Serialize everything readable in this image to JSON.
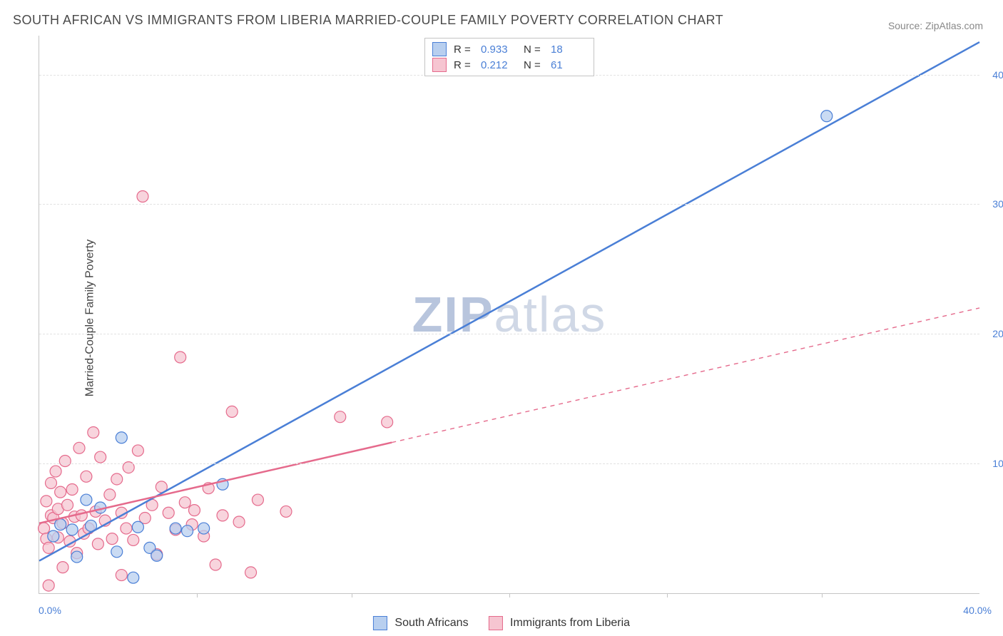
{
  "title": "SOUTH AFRICAN VS IMMIGRANTS FROM LIBERIA MARRIED-COUPLE FAMILY POVERTY CORRELATION CHART",
  "source": "Source: ZipAtlas.com",
  "y_axis_title": "Married-Couple Family Poverty",
  "watermark_a": "ZIP",
  "watermark_b": "atlas",
  "chart": {
    "type": "scatter",
    "xlim": [
      0,
      40
    ],
    "ylim": [
      0,
      43
    ],
    "x_ticks": [
      0,
      40
    ],
    "x_tick_labels": [
      "0.0%",
      "40.0%"
    ],
    "x_minor_ticks": [
      6.7,
      13.3,
      20,
      26.7,
      33.3
    ],
    "y_ticks": [
      10,
      20,
      30,
      40
    ],
    "y_tick_labels": [
      "10.0%",
      "20.0%",
      "30.0%",
      "40.0%"
    ],
    "grid_color": "#e2e2e2",
    "axis_color": "#c4c4c4",
    "background_color": "#ffffff",
    "marker_radius": 8,
    "marker_stroke_width": 1.2,
    "line_width": 2.5,
    "series": [
      {
        "name": "South Africans",
        "color_fill": "#b8cfef",
        "color_stroke": "#4a7fd6",
        "r": 0.933,
        "n": 18,
        "regression": {
          "x1": 0,
          "y1": 2.5,
          "x2": 40,
          "y2": 42.5,
          "solid_until_x": 40
        },
        "points": [
          [
            0.6,
            4.4
          ],
          [
            0.9,
            5.3
          ],
          [
            1.4,
            4.9
          ],
          [
            1.6,
            2.8
          ],
          [
            2.0,
            7.2
          ],
          [
            2.2,
            5.2
          ],
          [
            2.6,
            6.6
          ],
          [
            3.3,
            3.2
          ],
          [
            3.5,
            12.0
          ],
          [
            4.0,
            1.2
          ],
          [
            4.2,
            5.1
          ],
          [
            4.7,
            3.5
          ],
          [
            5.0,
            2.9
          ],
          [
            5.8,
            5.0
          ],
          [
            6.3,
            4.8
          ],
          [
            7.0,
            5.0
          ],
          [
            7.8,
            8.4
          ],
          [
            33.5,
            36.8
          ]
        ]
      },
      {
        "name": "Immigrants from Liberia",
        "color_fill": "#f6c5d1",
        "color_stroke": "#e56a8c",
        "r": 0.212,
        "n": 61,
        "regression": {
          "x1": 0,
          "y1": 5.4,
          "x2": 40,
          "y2": 22.0,
          "solid_until_x": 15
        },
        "points": [
          [
            0.2,
            5.0
          ],
          [
            0.3,
            4.2
          ],
          [
            0.3,
            7.1
          ],
          [
            0.4,
            3.5
          ],
          [
            0.5,
            8.5
          ],
          [
            0.5,
            6.0
          ],
          [
            0.6,
            5.8
          ],
          [
            0.7,
            9.4
          ],
          [
            0.8,
            4.3
          ],
          [
            0.8,
            6.5
          ],
          [
            0.9,
            7.8
          ],
          [
            1.0,
            5.4
          ],
          [
            1.0,
            2.0
          ],
          [
            1.1,
            10.2
          ],
          [
            1.2,
            6.8
          ],
          [
            1.3,
            4.0
          ],
          [
            1.4,
            8.0
          ],
          [
            1.5,
            5.9
          ],
          [
            1.6,
            3.1
          ],
          [
            1.7,
            11.2
          ],
          [
            1.8,
            6.0
          ],
          [
            1.9,
            4.6
          ],
          [
            2.0,
            9.0
          ],
          [
            2.1,
            5.0
          ],
          [
            2.3,
            12.4
          ],
          [
            2.4,
            6.3
          ],
          [
            2.5,
            3.8
          ],
          [
            2.6,
            10.5
          ],
          [
            2.8,
            5.6
          ],
          [
            3.0,
            7.6
          ],
          [
            3.1,
            4.2
          ],
          [
            3.3,
            8.8
          ],
          [
            3.5,
            1.4
          ],
          [
            3.5,
            6.2
          ],
          [
            3.7,
            5.0
          ],
          [
            3.8,
            9.7
          ],
          [
            4.0,
            4.1
          ],
          [
            4.2,
            11.0
          ],
          [
            4.4,
            30.6
          ],
          [
            4.5,
            5.8
          ],
          [
            4.8,
            6.8
          ],
          [
            5.0,
            3.0
          ],
          [
            5.2,
            8.2
          ],
          [
            5.5,
            6.2
          ],
          [
            5.8,
            4.9
          ],
          [
            6.0,
            18.2
          ],
          [
            6.2,
            7.0
          ],
          [
            6.5,
            5.3
          ],
          [
            6.6,
            6.4
          ],
          [
            7.0,
            4.4
          ],
          [
            7.2,
            8.1
          ],
          [
            7.5,
            2.2
          ],
          [
            7.8,
            6.0
          ],
          [
            8.2,
            14.0
          ],
          [
            8.5,
            5.5
          ],
          [
            9.0,
            1.6
          ],
          [
            9.3,
            7.2
          ],
          [
            10.5,
            6.3
          ],
          [
            12.8,
            13.6
          ],
          [
            14.8,
            13.2
          ],
          [
            0.4,
            0.6
          ]
        ]
      }
    ]
  },
  "legend_top": {
    "r_label": "R =",
    "n_label": "N ="
  },
  "legend_bottom_labels": [
    "South Africans",
    "Immigrants from Liberia"
  ]
}
